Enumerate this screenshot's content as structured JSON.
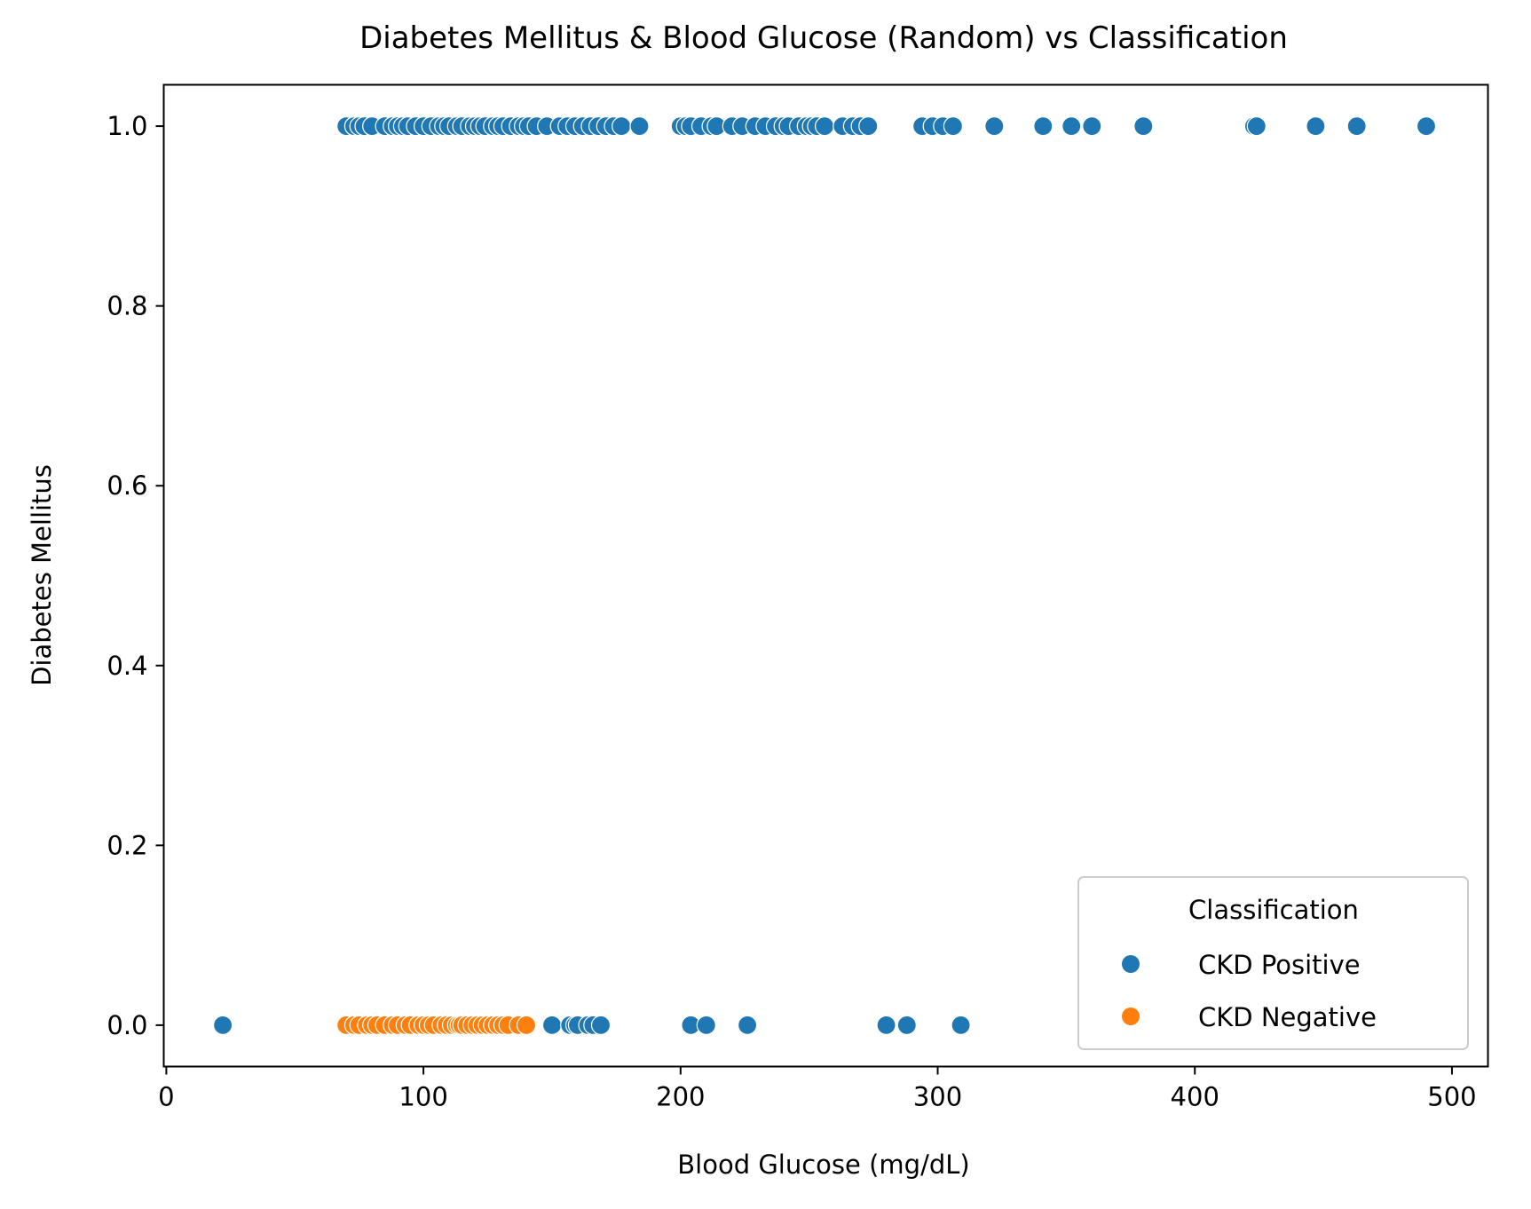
{
  "chart_data": {
    "type": "scatter",
    "title": "Diabetes Mellitus & Blood Glucose (Random) vs Classification",
    "xlabel": "Blood Glucose (mg/dL)",
    "ylabel": "Diabetes Mellitus",
    "xlim": [
      -1,
      514
    ],
    "ylim": [
      -0.046,
      1.046
    ],
    "x_ticks": [
      0,
      100,
      200,
      300,
      400,
      500
    ],
    "x_tick_labels": [
      "0",
      "100",
      "200",
      "300",
      "400",
      "500"
    ],
    "y_ticks": [
      0.0,
      0.2,
      0.4,
      0.6,
      0.8,
      1.0
    ],
    "y_tick_labels": [
      "0.0",
      "0.2",
      "0.4",
      "0.6",
      "0.8",
      "1.0"
    ],
    "grid": false,
    "legend": {
      "title": "Classification",
      "placement": "lower-right"
    },
    "series": [
      {
        "name": "CKD Positive",
        "color": "#1f77b4",
        "x": [
          70,
          73,
          75,
          77,
          80,
          85,
          88,
          90,
          92,
          94,
          97,
          100,
          103,
          106,
          108,
          110,
          113,
          115,
          118,
          120,
          122,
          124,
          127,
          129,
          131,
          134,
          137,
          139,
          141,
          144,
          148,
          153,
          156,
          159,
          162,
          165,
          168,
          171,
          174,
          177,
          184,
          200,
          202,
          204,
          208,
          212,
          214,
          220,
          224,
          229,
          233,
          237,
          240,
          242,
          246,
          249,
          251,
          253,
          256,
          263,
          267,
          270,
          273,
          294,
          298,
          302,
          306,
          322,
          341,
          352,
          360,
          380,
          423,
          424,
          447,
          463,
          490,
          22,
          150,
          157,
          159,
          160,
          164,
          166,
          169,
          204,
          210,
          226,
          280,
          288,
          309
        ],
        "y": [
          1,
          1,
          1,
          1,
          1,
          1,
          1,
          1,
          1,
          1,
          1,
          1,
          1,
          1,
          1,
          1,
          1,
          1,
          1,
          1,
          1,
          1,
          1,
          1,
          1,
          1,
          1,
          1,
          1,
          1,
          1,
          1,
          1,
          1,
          1,
          1,
          1,
          1,
          1,
          1,
          1,
          1,
          1,
          1,
          1,
          1,
          1,
          1,
          1,
          1,
          1,
          1,
          1,
          1,
          1,
          1,
          1,
          1,
          1,
          1,
          1,
          1,
          1,
          1,
          1,
          1,
          1,
          1,
          1,
          1,
          1,
          1,
          1,
          1,
          1,
          1,
          1,
          0,
          0,
          0,
          0,
          0,
          0,
          0,
          0,
          0,
          0,
          0,
          0,
          0,
          0
        ]
      },
      {
        "name": "CKD Negative",
        "color": "#ff7f0e",
        "x": [
          70,
          73,
          75,
          78,
          80,
          82,
          85,
          88,
          90,
          93,
          95,
          98,
          100,
          102,
          104,
          107,
          109,
          111,
          113,
          114,
          115,
          117,
          119,
          121,
          123,
          125,
          127,
          129,
          131,
          133,
          137,
          140
        ],
        "y": [
          0,
          0,
          0,
          0,
          0,
          0,
          0,
          0,
          0,
          0,
          0,
          0,
          0,
          0,
          0,
          0,
          0,
          0,
          0,
          0,
          0,
          0,
          0,
          0,
          0,
          0,
          0,
          0,
          0,
          0,
          0,
          0
        ]
      }
    ]
  }
}
